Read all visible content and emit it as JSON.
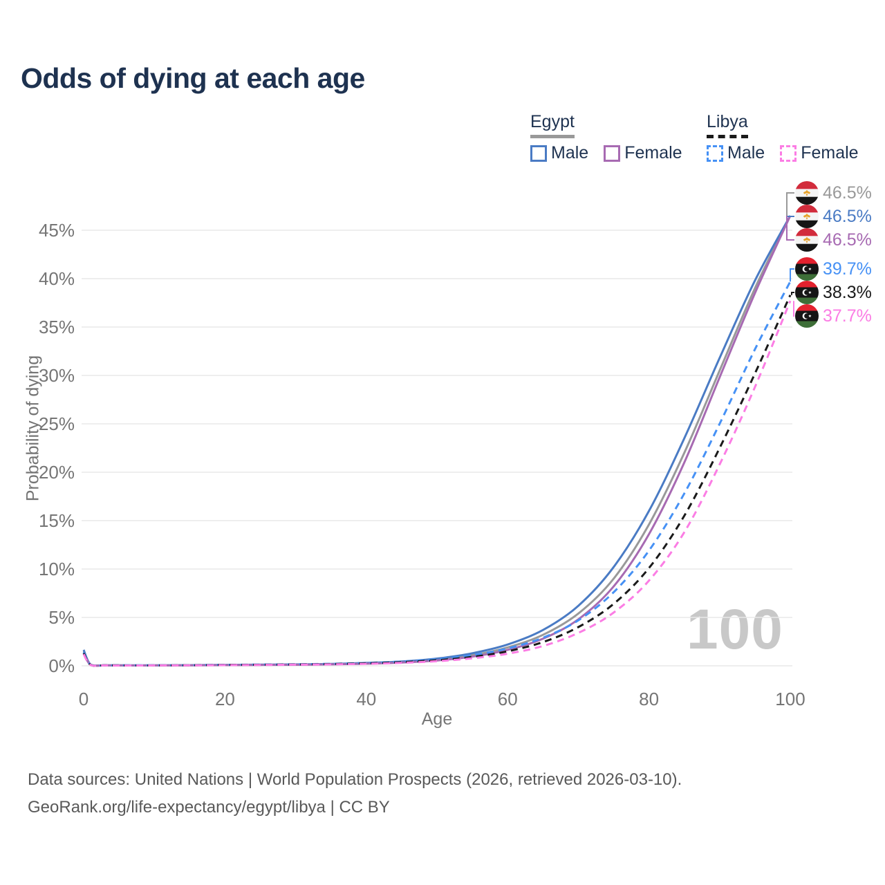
{
  "title": "Odds of dying at each age",
  "legend": {
    "groups": [
      {
        "title": "Egypt",
        "style": "solid",
        "items": [
          {
            "label": "Male",
            "color": "#4a7bc4"
          },
          {
            "label": "Female",
            "color": "#a76ab2"
          }
        ]
      },
      {
        "title": "Libya",
        "style": "dashed",
        "items": [
          {
            "label": "Male",
            "color": "#4691f5"
          },
          {
            "label": "Female",
            "color": "#fb7de4"
          }
        ]
      }
    ]
  },
  "watermark": "100",
  "footer": {
    "line1": "Data sources: United Nations | World Population Prospects (2026, retrieved 2026-03-10).",
    "line2": "GeoRank.org/life-expectancy/egypt/libya | CC BY"
  },
  "chart_data": {
    "type": "line",
    "title": "Odds of dying at each age",
    "xlabel": "Age",
    "ylabel": "Probability of dying",
    "unit": "%",
    "xlim": [
      0,
      100
    ],
    "ylim": [
      0,
      48
    ],
    "x_ticks": [
      0,
      20,
      40,
      60,
      80,
      100
    ],
    "y_ticks": [
      0,
      5,
      10,
      15,
      20,
      25,
      30,
      35,
      40,
      45
    ],
    "grid": "horizontal",
    "legend_position": "top-right",
    "series": [
      {
        "name": "Egypt (both sexes)",
        "country": "Egypt",
        "sex": "both",
        "color": "#999999",
        "dashed": false,
        "points": [
          [
            0,
            1.5
          ],
          [
            1,
            0.11
          ],
          [
            3,
            0.05
          ],
          [
            5,
            0.04
          ],
          [
            10,
            0.04
          ],
          [
            15,
            0.06
          ],
          [
            20,
            0.08
          ],
          [
            25,
            0.1
          ],
          [
            30,
            0.13
          ],
          [
            35,
            0.17
          ],
          [
            40,
            0.26
          ],
          [
            45,
            0.4
          ],
          [
            50,
            0.65
          ],
          [
            55,
            1.1
          ],
          [
            60,
            1.9
          ],
          [
            65,
            3.2
          ],
          [
            70,
            5.4
          ],
          [
            75,
            9.0
          ],
          [
            80,
            14.6
          ],
          [
            85,
            22.0
          ],
          [
            90,
            30.5
          ],
          [
            95,
            39.0
          ],
          [
            100,
            46.5
          ]
        ]
      },
      {
        "name": "Egypt Male",
        "country": "Egypt",
        "sex": "male",
        "color": "#4a7bc4",
        "dashed": false,
        "points": [
          [
            0,
            1.65
          ],
          [
            1,
            0.12
          ],
          [
            3,
            0.06
          ],
          [
            5,
            0.05
          ],
          [
            10,
            0.05
          ],
          [
            15,
            0.07
          ],
          [
            20,
            0.1
          ],
          [
            25,
            0.12
          ],
          [
            30,
            0.15
          ],
          [
            35,
            0.2
          ],
          [
            40,
            0.3
          ],
          [
            45,
            0.45
          ],
          [
            50,
            0.75
          ],
          [
            55,
            1.3
          ],
          [
            60,
            2.2
          ],
          [
            65,
            3.7
          ],
          [
            70,
            6.2
          ],
          [
            75,
            10.2
          ],
          [
            80,
            16.0
          ],
          [
            85,
            23.5
          ],
          [
            90,
            31.8
          ],
          [
            95,
            39.8
          ],
          [
            100,
            46.5
          ]
        ]
      },
      {
        "name": "Egypt Female",
        "country": "Egypt",
        "sex": "female",
        "color": "#a76ab2",
        "dashed": false,
        "points": [
          [
            0,
            1.35
          ],
          [
            1,
            0.1
          ],
          [
            3,
            0.05
          ],
          [
            5,
            0.04
          ],
          [
            10,
            0.04
          ],
          [
            15,
            0.05
          ],
          [
            20,
            0.07
          ],
          [
            25,
            0.09
          ],
          [
            30,
            0.11
          ],
          [
            35,
            0.15
          ],
          [
            40,
            0.22
          ],
          [
            45,
            0.34
          ],
          [
            50,
            0.55
          ],
          [
            55,
            0.95
          ],
          [
            60,
            1.65
          ],
          [
            65,
            2.8
          ],
          [
            70,
            4.8
          ],
          [
            75,
            8.2
          ],
          [
            80,
            13.6
          ],
          [
            85,
            21.0
          ],
          [
            90,
            29.8
          ],
          [
            95,
            38.5
          ],
          [
            100,
            46.5
          ]
        ]
      },
      {
        "name": "Libya Male",
        "country": "Libya",
        "sex": "male",
        "color": "#4691f5",
        "dashed": true,
        "points": [
          [
            0,
            1.4
          ],
          [
            1,
            0.1
          ],
          [
            3,
            0.05
          ],
          [
            5,
            0.05
          ],
          [
            10,
            0.05
          ],
          [
            15,
            0.07
          ],
          [
            20,
            0.1
          ],
          [
            25,
            0.13
          ],
          [
            30,
            0.16
          ],
          [
            35,
            0.21
          ],
          [
            40,
            0.3
          ],
          [
            45,
            0.44
          ],
          [
            50,
            0.68
          ],
          [
            55,
            1.1
          ],
          [
            60,
            1.8
          ],
          [
            65,
            2.9
          ],
          [
            70,
            4.7
          ],
          [
            75,
            7.6
          ],
          [
            80,
            11.9
          ],
          [
            85,
            17.8
          ],
          [
            90,
            25.0
          ],
          [
            95,
            32.7
          ],
          [
            100,
            39.7
          ]
        ]
      },
      {
        "name": "Libya (both sexes)",
        "country": "Libya",
        "sex": "both",
        "color": "#1a1a1a",
        "dashed": true,
        "points": [
          [
            0,
            1.3
          ],
          [
            1,
            0.09
          ],
          [
            3,
            0.05
          ],
          [
            5,
            0.04
          ],
          [
            10,
            0.04
          ],
          [
            15,
            0.06
          ],
          [
            20,
            0.09
          ],
          [
            25,
            0.11
          ],
          [
            30,
            0.14
          ],
          [
            35,
            0.18
          ],
          [
            40,
            0.26
          ],
          [
            45,
            0.38
          ],
          [
            50,
            0.58
          ],
          [
            55,
            0.92
          ],
          [
            60,
            1.5
          ],
          [
            65,
            2.45
          ],
          [
            70,
            4.0
          ],
          [
            75,
            6.4
          ],
          [
            80,
            10.1
          ],
          [
            85,
            15.5
          ],
          [
            90,
            22.5
          ],
          [
            95,
            30.2
          ],
          [
            100,
            38.3
          ]
        ]
      },
      {
        "name": "Libya Female",
        "country": "Libya",
        "sex": "female",
        "color": "#fb7de4",
        "dashed": true,
        "points": [
          [
            0,
            1.2
          ],
          [
            1,
            0.08
          ],
          [
            3,
            0.04
          ],
          [
            5,
            0.03
          ],
          [
            10,
            0.04
          ],
          [
            15,
            0.05
          ],
          [
            20,
            0.07
          ],
          [
            25,
            0.09
          ],
          [
            30,
            0.12
          ],
          [
            35,
            0.15
          ],
          [
            40,
            0.21
          ],
          [
            45,
            0.31
          ],
          [
            50,
            0.48
          ],
          [
            55,
            0.78
          ],
          [
            60,
            1.25
          ],
          [
            65,
            2.05
          ],
          [
            70,
            3.4
          ],
          [
            75,
            5.5
          ],
          [
            80,
            8.8
          ],
          [
            85,
            13.8
          ],
          [
            90,
            20.8
          ],
          [
            95,
            28.8
          ],
          [
            100,
            37.7
          ]
        ]
      }
    ],
    "end_labels": [
      {
        "series": "Egypt (both sexes)",
        "flag": "egypt",
        "value": "46.5%",
        "color": "#999999",
        "line_end": 46.5
      },
      {
        "series": "Egypt Male",
        "flag": "egypt",
        "value": "46.5%",
        "color": "#4a7bc4",
        "line_end": 46.5
      },
      {
        "series": "Egypt Female",
        "flag": "egypt",
        "value": "46.5%",
        "color": "#a76ab2",
        "line_end": 46.5
      },
      {
        "series": "Libya Male",
        "flag": "libya",
        "value": "39.7%",
        "color": "#4691f5",
        "line_end": 39.7
      },
      {
        "series": "Libya (both sexes)",
        "flag": "libya",
        "value": "38.3%",
        "color": "#1a1a1a",
        "line_end": 38.3
      },
      {
        "series": "Libya Female",
        "flag": "libya",
        "value": "37.7%",
        "color": "#fb7de4",
        "line_end": 37.7
      }
    ]
  }
}
